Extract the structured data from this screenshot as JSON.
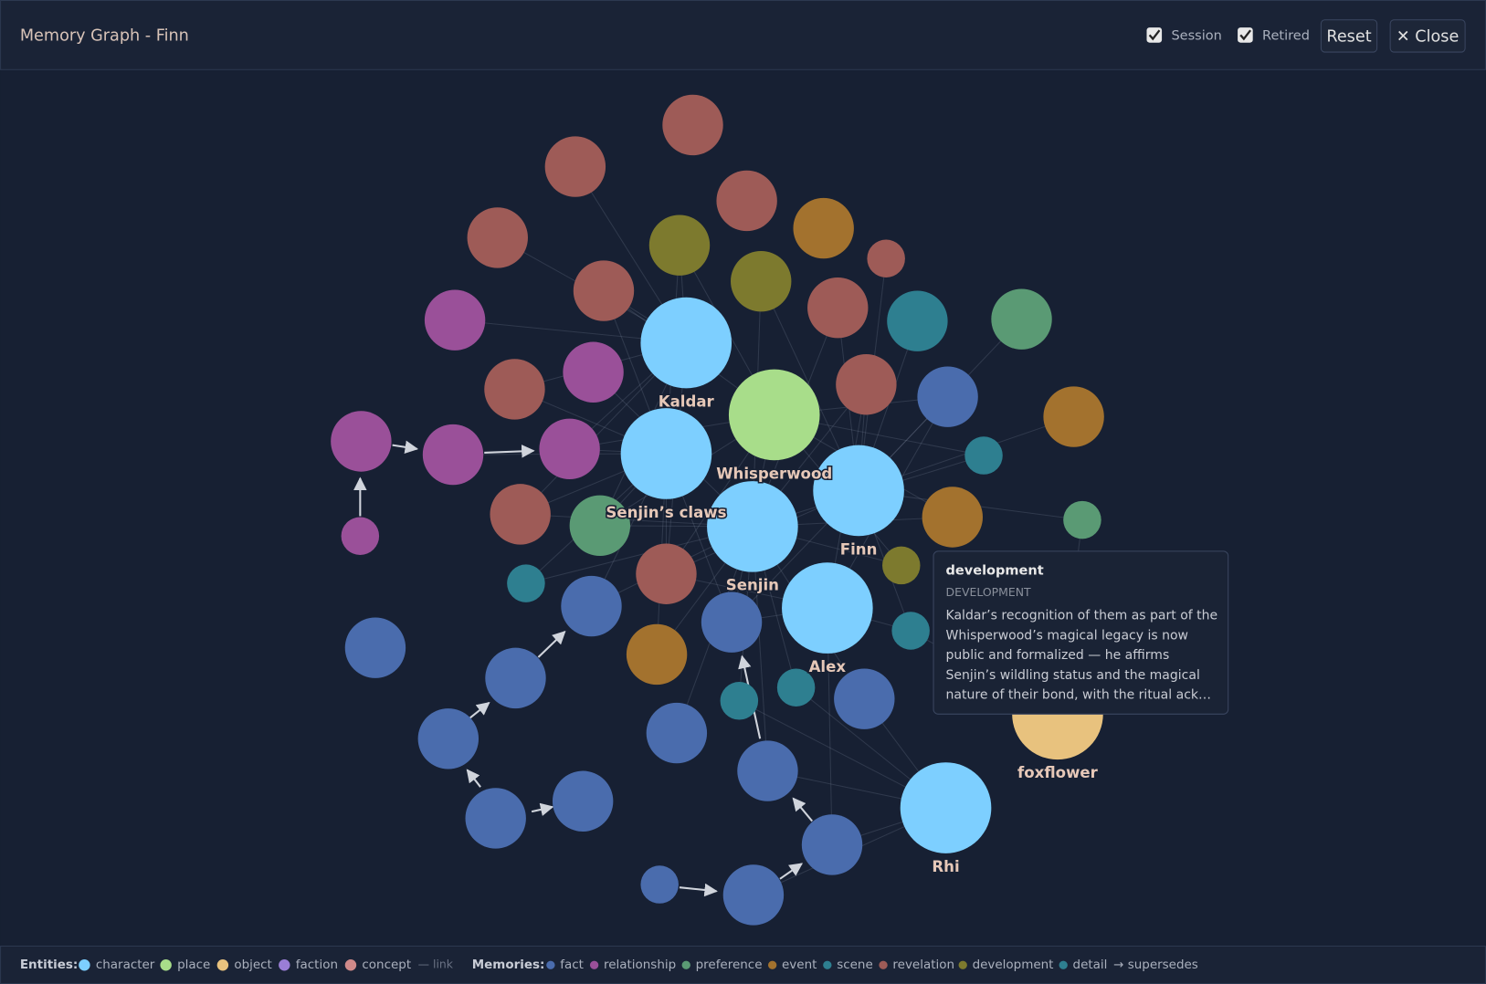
{
  "header": {
    "title": "Memory Graph - Finn",
    "toggles": [
      "Session",
      "Retired"
    ],
    "buttons": [
      "Reset",
      "✕ Close"
    ]
  },
  "nodes": [
    {
      "label": "Kaldar"
    },
    {
      "label": "Whisperwood"
    },
    {
      "label": "Senjin’s claws"
    },
    {
      "label": "Senjin"
    },
    {
      "label": "Finn"
    },
    {
      "label": "Alex"
    },
    {
      "label": "foxflower"
    },
    {
      "label": "Rhi"
    }
  ],
  "tooltip": {
    "title": "development",
    "type": "DEVELOPMENT",
    "text": "Kaldar’s recognition of them as part of the Whisperwood’s magical legacy is now public and formalized — he affirms Senjin’s wildling status and the magical nature of their bond, with the ritual ack…"
  },
  "legend": {
    "entities_label": "Entities:",
    "entities": [
      "character",
      "place",
      "object",
      "faction",
      "concept"
    ],
    "link": "— link",
    "memories_label": "Memories:",
    "memories": [
      "fact",
      "relationship",
      "preference",
      "event",
      "scene",
      "revelation",
      "development",
      "detail"
    ],
    "supersedes": "→ supersedes"
  }
}
